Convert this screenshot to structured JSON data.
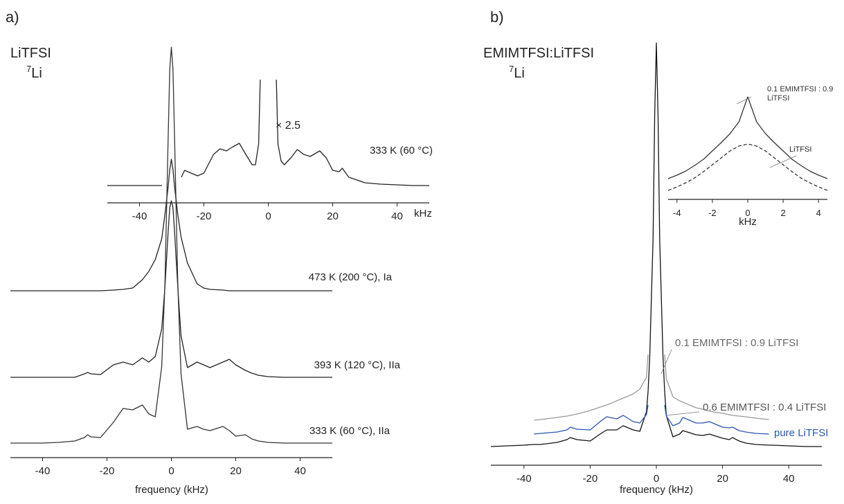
{
  "chart_data": [
    {
      "type": "line",
      "panel": "a)",
      "title": "LiTFSI",
      "nucleus_mass": "7",
      "nucleus_element": "Li",
      "xlabel": "frequency (kHz)",
      "xlim": [
        -50,
        50
      ],
      "xticks": [
        -40,
        -20,
        0,
        20,
        40
      ],
      "x": [
        -50,
        -45,
        -40,
        -35,
        -30,
        -27,
        -26,
        -25,
        -22,
        -18,
        -15,
        -12,
        -9,
        -7,
        -5,
        -3,
        -2,
        -1,
        -0.5,
        0,
        0.5,
        1,
        2,
        3,
        5,
        8,
        10,
        12,
        16,
        18,
        20,
        23,
        25,
        27,
        30,
        35,
        40,
        45,
        50
      ],
      "series": [
        {
          "name": "473 K (200 °C), Ia",
          "color": "#222222",
          "values": [
            0,
            0,
            0,
            0,
            0,
            0,
            0,
            0,
            0,
            1,
            2,
            4,
            16,
            28,
            45,
            75,
            110,
            150,
            175,
            190,
            175,
            150,
            110,
            78,
            40,
            10,
            4,
            2,
            1,
            0,
            0,
            0,
            0,
            0,
            0,
            0,
            0,
            0,
            0
          ]
        },
        {
          "name": "393 K (120 °C), IIa",
          "color": "#222222",
          "values": [
            0,
            0,
            0,
            0,
            0,
            5,
            7,
            5,
            4,
            18,
            22,
            18,
            28,
            22,
            30,
            70,
            130,
            210,
            245,
            255,
            245,
            210,
            130,
            60,
            14,
            22,
            18,
            14,
            22,
            26,
            18,
            10,
            6,
            3,
            1,
            0,
            0,
            0,
            0
          ]
        },
        {
          "name": "333 K (60 °C), IIa",
          "color": "#333333",
          "values": [
            0,
            0,
            0,
            1,
            3,
            8,
            12,
            9,
            8,
            30,
            50,
            48,
            55,
            42,
            38,
            110,
            230,
            440,
            540,
            572,
            540,
            440,
            230,
            100,
            20,
            24,
            20,
            18,
            24,
            18,
            10,
            12,
            6,
            3,
            1,
            0,
            0,
            0,
            0
          ]
        }
      ]
    },
    {
      "type": "line",
      "annotation": "× 2.5",
      "xunit": "kHz",
      "xlim": [
        -50,
        50
      ],
      "xticks": [
        -40,
        -20,
        0,
        20,
        40
      ],
      "x": [
        -50,
        -45,
        -40,
        -35,
        -33,
        -30,
        -27,
        -26,
        -24,
        -22,
        -20,
        -17,
        -15,
        -13,
        -11,
        -9,
        -7,
        -5,
        -4,
        -3,
        -2.5,
        0,
        2.5,
        3,
        4,
        5,
        7,
        9,
        11,
        13,
        16,
        18,
        20,
        22,
        23,
        25,
        30,
        35,
        40,
        45,
        50
      ],
      "series": [
        {
          "name": "333 K (60 °C)",
          "color": "#222222",
          "values": [
            0,
            0,
            0,
            0,
            0,
            null,
            12,
            22,
            18,
            14,
            18,
            45,
            53,
            50,
            56,
            61,
            45,
            30,
            30,
            60,
            153,
            null,
            153,
            60,
            35,
            30,
            40,
            52,
            45,
            42,
            50,
            40,
            22,
            20,
            25,
            12,
            4,
            2,
            1,
            0,
            0
          ]
        }
      ]
    },
    {
      "type": "line",
      "panel": "b)",
      "title": "EMIMTFSI:LiTFSI",
      "nucleus_mass": "7",
      "nucleus_element": "Li",
      "xlabel": "frequency (kHz)",
      "xlim": [
        -50,
        50
      ],
      "xticks": [
        -40,
        -20,
        0,
        20,
        40
      ],
      "x": [
        -50,
        -45,
        -40,
        -37,
        -35,
        -30,
        -27,
        -26,
        -24,
        -20,
        -17,
        -15,
        -12,
        -10,
        -7,
        -5,
        -3,
        -2.5,
        -2,
        -1,
        -0.5,
        0,
        0.5,
        1,
        2,
        2.5,
        3,
        5,
        7,
        8,
        10,
        12,
        14,
        16,
        20,
        22,
        23,
        25,
        27,
        30,
        34,
        35,
        40,
        45,
        50
      ],
      "series": [
        {
          "name": "0.1 EMIMTFSI : 0.9 LiTFSI",
          "color": "#111111",
          "label_color": "#666666",
          "values": [
            0,
            1,
            2,
            3,
            3,
            6,
            10,
            13,
            10,
            8,
            18,
            24,
            24,
            30,
            24,
            22,
            50,
            80,
            130,
            300,
            480,
            583,
            480,
            300,
            130,
            80,
            45,
            14,
            18,
            23,
            20,
            17,
            16,
            18,
            12,
            10,
            13,
            8,
            5,
            3,
            2,
            2,
            1,
            0,
            0
          ]
        },
        {
          "name": "0.6 EMIMTFSI : 0.4 LiTFSI",
          "color": "#999999",
          "label_color": "#555555",
          "values": [
            null,
            null,
            null,
            0,
            1,
            4,
            6,
            7,
            9,
            14,
            19,
            22,
            28,
            32,
            38,
            45,
            62,
            95,
            null,
            null,
            null,
            null,
            null,
            null,
            null,
            95,
            60,
            34,
            28,
            26,
            22,
            18,
            16,
            13,
            10,
            8,
            7,
            6,
            5,
            3,
            1,
            null,
            null,
            null,
            null
          ]
        },
        {
          "name": "pure LiTFSI",
          "color": "#2a55b0",
          "label_color": "#2a55b0",
          "values": [
            null,
            null,
            null,
            0,
            1,
            3,
            6,
            10,
            7,
            6,
            18,
            25,
            22,
            27,
            18,
            16,
            28,
            42,
            null,
            null,
            null,
            null,
            null,
            null,
            null,
            42,
            26,
            12,
            16,
            24,
            20,
            16,
            16,
            18,
            10,
            9,
            10,
            5,
            3,
            1,
            0,
            null,
            null,
            null,
            null
          ]
        }
      ]
    },
    {
      "type": "line",
      "xlabel": "kHz",
      "xlim": [
        -4.5,
        4.5
      ],
      "xticks": [
        -4,
        -2,
        0,
        2,
        4
      ],
      "x": [
        -4.5,
        -4,
        -3.5,
        -3,
        -2.5,
        -2,
        -1.5,
        -1,
        -0.5,
        0,
        0.5,
        1,
        1.5,
        2,
        2.5,
        3,
        3.5,
        4,
        4.5
      ],
      "series": [
        {
          "name": "0.1 EMIMTFSI : 0.9 LiTFSI",
          "color": "#333333",
          "dashed": false,
          "values": [
            30,
            35,
            41,
            49,
            58,
            70,
            82,
            95,
            112,
            148,
            112,
            95,
            82,
            70,
            58,
            49,
            41,
            35,
            30
          ]
        },
        {
          "name": "LiTFSI",
          "color": "#333333",
          "dashed": true,
          "values": [
            13,
            18,
            24,
            31,
            40,
            50,
            60,
            70,
            77,
            80,
            77,
            70,
            60,
            50,
            40,
            31,
            24,
            18,
            13
          ]
        }
      ]
    }
  ]
}
